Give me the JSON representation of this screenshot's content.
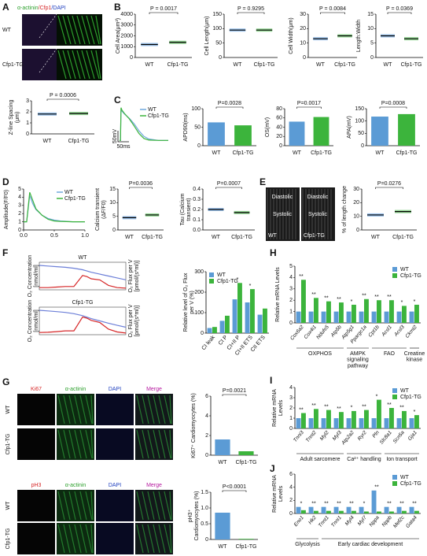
{
  "panel_labels": [
    "A",
    "B",
    "C",
    "D",
    "E",
    "F",
    "G",
    "H",
    "I",
    "J"
  ],
  "images": {
    "A": {
      "stain": [
        "α-actinin",
        "/Cfp1",
        "/DAPI"
      ],
      "rows": [
        "WT",
        "Cfp1-TG"
      ]
    },
    "E": {
      "phases": [
        "Diastolic",
        "Systolic"
      ],
      "conditions": [
        "WT",
        "Cfp1-TG"
      ]
    },
    "G": {
      "headers_top": [
        "Ki67",
        "α-actinin",
        "DAPI",
        "Merge"
      ],
      "headers_bottom": [
        "pH3",
        "α-actinin",
        "DAPI",
        "Merge"
      ],
      "rows": [
        "WT",
        "Cfp1-TG"
      ]
    }
  },
  "chart_data": [
    {
      "type": "strip",
      "ylabel": "Z-line Spacing (μm)",
      "categories": [
        "WT",
        "Cfp1-TG"
      ],
      "values": [
        1.8,
        1.85
      ],
      "colors": [
        "#4a90d9",
        "#3cb43c"
      ],
      "ylim": [
        0,
        3
      ],
      "yticks": [
        0,
        1,
        2,
        3
      ],
      "annotation": "P = 0.0006"
    },
    {
      "type": "strip",
      "ylabel": "Cell Area(μm²)",
      "categories": [
        "WT",
        "Cfp1-TG"
      ],
      "values": [
        1200,
        1400
      ],
      "colors": [
        "#4a90d9",
        "#3cb43c"
      ],
      "ylim": [
        0,
        4000
      ],
      "yticks": [
        0,
        1000,
        2000,
        3000,
        4000
      ],
      "annotation": "P = 0.0017"
    },
    {
      "type": "strip",
      "ylabel": "Cell Length(μm)",
      "categories": [
        "WT",
        "Cfp1-TG"
      ],
      "values": [
        95,
        95
      ],
      "colors": [
        "#4a90d9",
        "#3cb43c"
      ],
      "ylim": [
        0,
        150
      ],
      "yticks": [
        0,
        50,
        100,
        150
      ],
      "annotation": "P = 0.9295"
    },
    {
      "type": "strip",
      "ylabel": "Cell Width(μm)",
      "categories": [
        "WT",
        "Cfp1-TG"
      ],
      "values": [
        13,
        15
      ],
      "colors": [
        "#4a90d9",
        "#3cb43c"
      ],
      "ylim": [
        0,
        30
      ],
      "yticks": [
        0,
        10,
        20,
        30
      ],
      "annotation": "P = 0.0084"
    },
    {
      "type": "strip",
      "ylabel": "Length:Width",
      "categories": [
        "WT",
        "Cfp1-TG"
      ],
      "values": [
        7.5,
        6.5
      ],
      "colors": [
        "#4a90d9",
        "#3cb43c"
      ],
      "ylim": [
        0,
        15
      ],
      "yticks": [
        0,
        5,
        10,
        15
      ],
      "annotation": "P = 0.0369"
    },
    {
      "type": "line",
      "axes": false,
      "x": [
        0,
        2,
        3,
        5,
        10,
        20,
        30,
        40,
        50,
        60,
        80,
        100
      ],
      "xlim": [
        0,
        100
      ],
      "ylim": [
        -80,
        50
      ],
      "legend": "upper right",
      "scale_labels": [
        "50mV",
        "50ms"
      ],
      "series": [
        {
          "name": "WT",
          "color": "#6fa8dc",
          "values": [
            -75,
            -75,
            40,
            32,
            22,
            6,
            -14,
            -40,
            -60,
            -70,
            -75,
            -75
          ]
        },
        {
          "name": "Cfp1-TG",
          "color": "#3cb43c",
          "values": [
            -75,
            -75,
            45,
            36,
            24,
            4,
            -22,
            -50,
            -68,
            -74,
            -75,
            -75
          ]
        }
      ]
    },
    {
      "type": "bar",
      "ylabel": "APD90(ms)",
      "categories": [
        "WT",
        "Cfp1-TG"
      ],
      "values": [
        63,
        55
      ],
      "colors": [
        "#5b9bd5",
        "#3cb43c"
      ],
      "ylim": [
        0,
        100
      ],
      "yticks": [
        0,
        50,
        100
      ],
      "annotation": "P=0.0028"
    },
    {
      "type": "bar",
      "ylabel": "OS(mV)",
      "categories": [
        "WT",
        "Cfp1-TG"
      ],
      "values": [
        52,
        62
      ],
      "colors": [
        "#5b9bd5",
        "#3cb43c"
      ],
      "ylim": [
        0,
        80
      ],
      "yticks": [
        0,
        20,
        40,
        60,
        80
      ],
      "annotation": "P=0.0017"
    },
    {
      "type": "bar",
      "ylabel": "APA(mV)",
      "categories": [
        "WT",
        "Cfp1-TG"
      ],
      "values": [
        118,
        128
      ],
      "colors": [
        "#5b9bd5",
        "#3cb43c"
      ],
      "ylim": [
        0,
        150
      ],
      "yticks": [
        0,
        50,
        100,
        150
      ],
      "annotation": "P=0.0008"
    },
    {
      "type": "line",
      "ylabel": "Amplitude(F/F0)",
      "x": [
        0,
        0.05,
        0.1,
        0.15,
        0.2,
        0.3,
        0.4,
        0.5,
        0.6,
        0.8,
        1.0
      ],
      "xlim": [
        0,
        1
      ],
      "xticks": [
        {
          "value": 0,
          "label": "0.0"
        },
        0.5,
        {
          "value": 1,
          "label": "1.0"
        }
      ],
      "ylim": [
        0,
        5
      ],
      "yticks": [
        0,
        1,
        2,
        3,
        4,
        5
      ],
      "legend": "upper right",
      "series": [
        {
          "name": "WT",
          "color": "#6fa8dc",
          "values": [
            1,
            1,
            4.2,
            3.2,
            2.5,
            1.8,
            1.4,
            1.2,
            1.1,
            1.0,
            1.0
          ]
        },
        {
          "name": "Cfp1-TG",
          "color": "#3cb43c",
          "values": [
            1,
            1,
            4.6,
            3.6,
            2.6,
            1.8,
            1.3,
            1.1,
            1.05,
            1.0,
            1.0
          ]
        }
      ]
    },
    {
      "type": "strip",
      "ylabel": "Calcium transient (ΔF/F0)",
      "categories": [
        "WT",
        "Cfp1-TG"
      ],
      "values": [
        4.5,
        5.5
      ],
      "colors": [
        "#4a90d9",
        "#3cb43c"
      ],
      "ylim": [
        0,
        15
      ],
      "yticks": [
        0,
        5,
        10,
        15
      ],
      "annotation": "P=0.0036"
    },
    {
      "type": "strip",
      "ylabel": "Tau (Calcium transient)",
      "categories": [
        "WT",
        "Cfp1-TG"
      ],
      "values": [
        0.2,
        0.17
      ],
      "colors": [
        "#4a90d9",
        "#3cb43c"
      ],
      "ylim": [
        0,
        0.4
      ],
      "yticks": [
        {
          "value": 0,
          "label": "0.0"
        },
        0.1,
        0.2,
        0.3,
        0.4
      ],
      "annotation": "P=0.0007"
    },
    {
      "type": "strip",
      "ylabel": "% of length change",
      "categories": [
        "WT",
        "Cfp1-TG"
      ],
      "values": [
        11,
        13.5
      ],
      "colors": [
        "#4a90d9",
        "#3cb43c"
      ],
      "ylim": [
        0,
        30
      ],
      "yticks": [
        0,
        10,
        20,
        30
      ],
      "annotation": "P=0.0276"
    },
    {
      "type": "dual_line",
      "title": "WT",
      "frame": true,
      "ylabel": "O₂ Concentration [nmol/ml]",
      "y2label": "O₂ Flux per V [pmol/(s*ml)]",
      "x": [
        0,
        10,
        20,
        30,
        40,
        50,
        55,
        60,
        70,
        80,
        90,
        100
      ],
      "xlim": [
        0,
        100
      ],
      "ylim": [
        0,
        220
      ],
      "y2lim": [
        0,
        250
      ],
      "series": [
        {
          "color": "#6c7fd8",
          "values": [
            195,
            190,
            185,
            180,
            172,
            160,
            150,
            140,
            125,
            110,
            95,
            80
          ]
        },
        {
          "color": "#d62728",
          "axis": "y2",
          "values": [
            20,
            20,
            25,
            30,
            30,
            130,
            120,
            100,
            90,
            40,
            20,
            15
          ]
        }
      ]
    },
    {
      "type": "dual_line",
      "title": "Cfp1-TG",
      "frame": true,
      "ylabel": "O₂ Concentration [nmol/ml]",
      "y2label": "O₂ Flux per V [pmol/(s*ml)]",
      "x": [
        0,
        10,
        20,
        30,
        40,
        50,
        55,
        60,
        70,
        80,
        90,
        100
      ],
      "xlim": [
        0,
        100
      ],
      "ylim": [
        0,
        220
      ],
      "y2lim": [
        0,
        250
      ],
      "series": [
        {
          "color": "#6c7fd8",
          "values": [
            195,
            190,
            184,
            178,
            168,
            152,
            140,
            128,
            110,
            92,
            75,
            60
          ]
        },
        {
          "color": "#d62728",
          "axis": "y2",
          "values": [
            20,
            22,
            28,
            35,
            35,
            160,
            150,
            130,
            110,
            50,
            25,
            15
          ]
        }
      ]
    },
    {
      "type": "grouped_bar",
      "ylabel": "Relative level of O₂ Flux per V (%)",
      "categories": [
        "CI leak",
        "CI P",
        "CI+II P",
        "CI+II ETS",
        "CII ETS"
      ],
      "ylim": [
        0,
        300
      ],
      "yticks": [
        0,
        100,
        200,
        300
      ],
      "legend": "upper left",
      "gene_labels": false,
      "series": [
        {
          "name": "WT",
          "color": "#5b9bd5",
          "values": [
            25,
            60,
            165,
            150,
            90
          ]
        },
        {
          "name": "Cfp1-TG",
          "color": "#3cb43c",
          "values": [
            30,
            85,
            245,
            215,
            120
          ]
        }
      ],
      "significance": [
        null,
        null,
        "*",
        "*",
        null
      ]
    },
    {
      "type": "bar",
      "ylabel": "Ki67⁺ Cardiomyocytes (%)",
      "categories": [
        "WT",
        "Cfp1-TG"
      ],
      "values": [
        1.6,
        0.4
      ],
      "colors": [
        "#5b9bd5",
        "#3cb43c"
      ],
      "ylim": [
        0,
        6
      ],
      "yticks": [
        0,
        2,
        4,
        6
      ],
      "annotation": "P=0.0021"
    },
    {
      "type": "bar",
      "ylabel": "pH3⁺ Cardiomyocytes (%)",
      "categories": [
        "WT",
        "Cfp1-TG"
      ],
      "values": [
        0.85,
        0.02
      ],
      "colors": [
        "#5b9bd5",
        "#3cb43c"
      ],
      "ylim": [
        0,
        1.5
      ],
      "yticks": [
        0,
        0.5,
        {
          "value": 1,
          "label": "1.0"
        },
        1.5
      ],
      "annotation": "P<0.0001"
    },
    {
      "type": "grouped_bar",
      "ylabel": "Relative mRNA Levels",
      "categories": [
        "Cox6a2",
        "Cox4i1",
        "Ndufs5",
        "Atp5b",
        "Atp5g1",
        "Ppargc1a",
        "Cpt1b",
        "Acsl1",
        "Acsl3",
        "Ckmt2"
      ],
      "ylim": [
        0,
        5
      ],
      "yticks": [
        0,
        1,
        2,
        3,
        4,
        5
      ],
      "legend": "upper right",
      "gene_labels": true,
      "series": [
        {
          "name": "WT",
          "color": "#5b9bd5",
          "values": [
            1,
            1,
            1,
            1,
            1,
            1,
            1,
            1,
            1,
            1
          ]
        },
        {
          "name": "Cfp1-TG",
          "color": "#3cb43c",
          "values": [
            3.8,
            2.2,
            1.9,
            1.8,
            1.6,
            2.1,
            2.0,
            2.0,
            1.5,
            1.6
          ]
        }
      ],
      "significance": [
        "**",
        "**",
        "**",
        "**",
        "*",
        "**",
        "**",
        "**",
        "*",
        "*"
      ],
      "group_labels": [
        "OXPHOS",
        "AMPK signaling pathway",
        "FAO",
        "Creatine kinase"
      ]
    },
    {
      "type": "grouped_bar",
      "ylabel": "Relative mRNA Levels",
      "categories": [
        "Tnni3",
        "Tnnt2",
        "Myl2",
        "Myl3",
        "Atp2a2",
        "Ryr2",
        "Pln",
        "Slc8a1",
        "Scn5a",
        "Gja1"
      ],
      "ylim": [
        0,
        4
      ],
      "yticks": [
        0,
        1,
        2,
        3,
        4
      ],
      "legend": "upper right",
      "gene_labels": true,
      "series": [
        {
          "name": "WT",
          "color": "#5b9bd5",
          "values": [
            1,
            1,
            1,
            1,
            1,
            1,
            1,
            1,
            1,
            1
          ]
        },
        {
          "name": "Cfp1-TG",
          "color": "#3cb43c",
          "values": [
            1.5,
            1.9,
            1.8,
            1.6,
            1.7,
            1.8,
            2.8,
            2.0,
            1.7,
            1.3
          ]
        }
      ],
      "significance": [
        "**",
        "**",
        "**",
        "**",
        "*",
        "**",
        "*",
        "**",
        "**",
        "*"
      ],
      "group_labels": [
        "Adult sarcomere",
        "Ca²⁺ handling",
        "Ion transport"
      ]
    },
    {
      "type": "grouped_bar",
      "ylabel": "Relative mRNA Levels",
      "categories": [
        "Eno1",
        "Hk2",
        "Tnnt1",
        "Tnni1",
        "Myl4",
        "Myl7",
        "Nppa",
        "Nppb",
        "Mef2c",
        "Gata4"
      ],
      "ylim": [
        0,
        6
      ],
      "yticks": [
        0,
        2,
        4,
        6
      ],
      "legend": "upper right",
      "gene_labels": true,
      "series": [
        {
          "name": "WT",
          "color": "#5b9bd5",
          "values": [
            1,
            1,
            1,
            1,
            1,
            1,
            3.5,
            1,
            1,
            1
          ]
        },
        {
          "name": "Cfp1-TG",
          "color": "#3cb43c",
          "values": [
            0.5,
            0.4,
            0.4,
            0.4,
            0.4,
            0.3,
            0.3,
            0.3,
            0.4,
            0.4
          ]
        }
      ],
      "significance": [
        "*",
        "**",
        "**",
        "**",
        "**",
        "*",
        "**",
        "**",
        "**",
        "**"
      ],
      "group_labels": [
        "Glycolysis",
        "Early cardiac development"
      ]
    }
  ]
}
